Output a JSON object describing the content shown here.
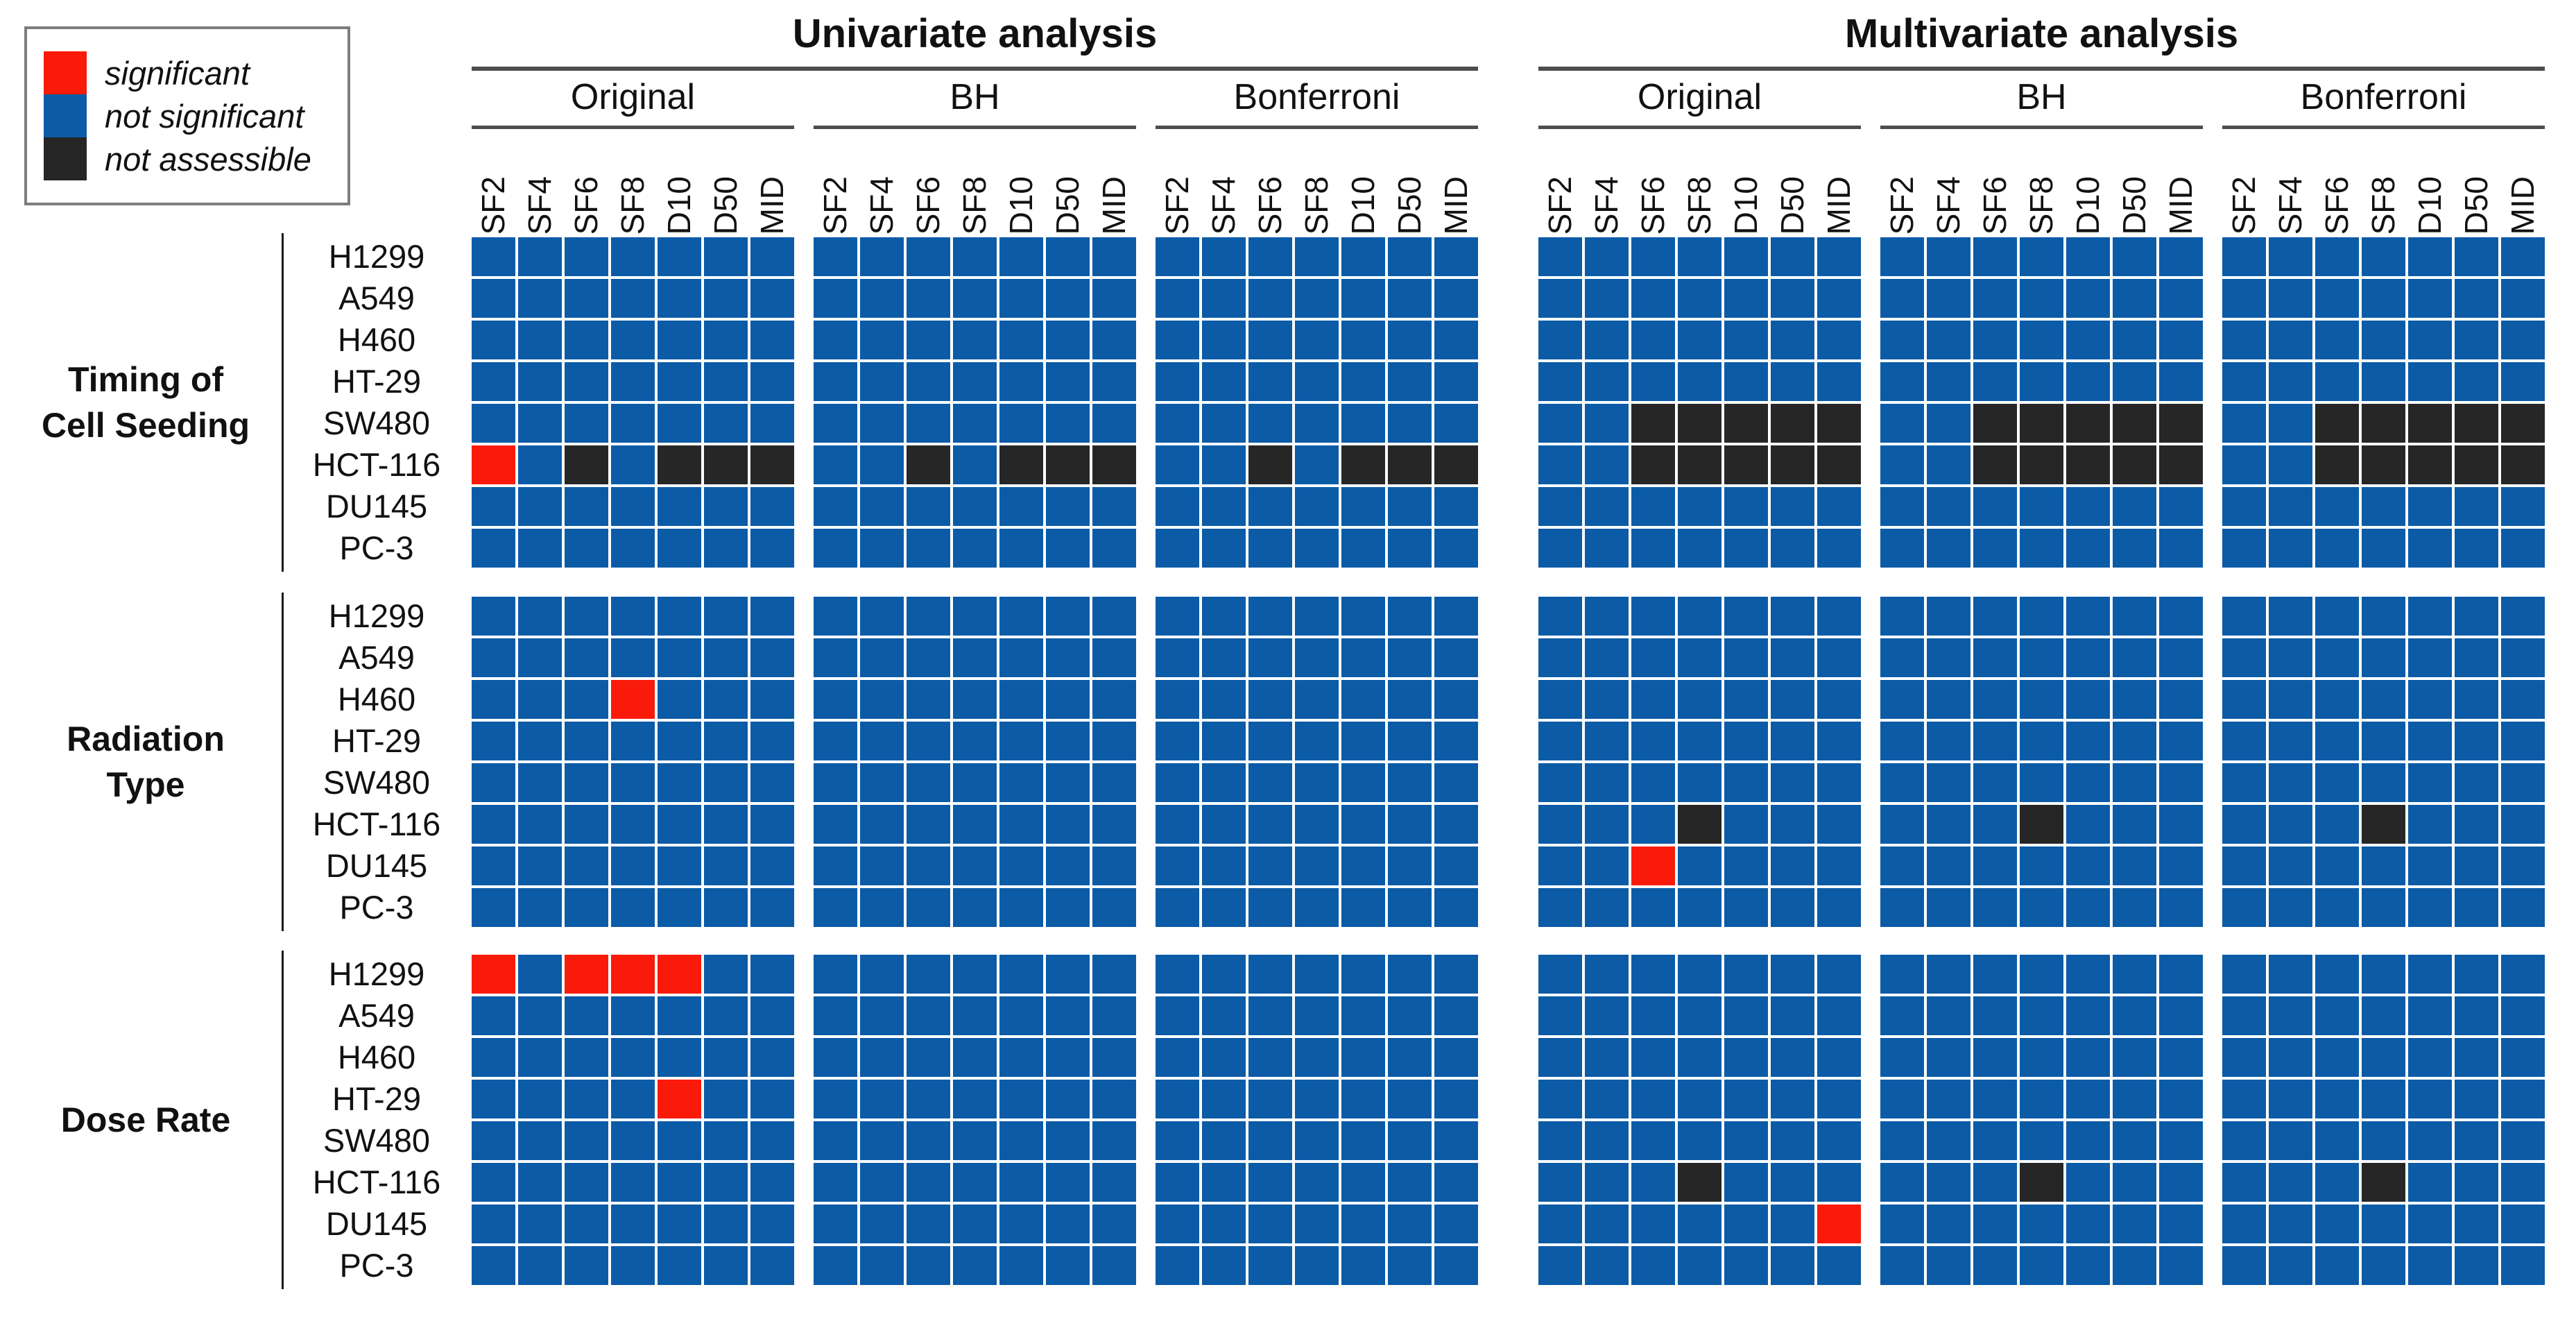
{
  "legend": {
    "items": [
      {
        "code": "R",
        "label": "significant",
        "color": "#fa1a0a"
      },
      {
        "code": "B",
        "label": "not significant",
        "color": "#0b5ba7"
      },
      {
        "code": "K",
        "label": "not assessible",
        "color": "#262626"
      }
    ]
  },
  "chart_data": {
    "type": "heatmap",
    "analyses": [
      {
        "label": "Univariate analysis"
      },
      {
        "label": "Multivariate analysis"
      }
    ],
    "methods": [
      "Original",
      "BH",
      "Bonferroni"
    ],
    "columns": [
      "SF2",
      "SF4",
      "SF6",
      "SF8",
      "D10",
      "D50",
      "MID"
    ],
    "rows": [
      "H1299",
      "A549",
      "H460",
      "HT-29",
      "SW480",
      "HCT-116",
      "DU145",
      "PC-3"
    ],
    "row_groups": [
      {
        "label": "Timing of Cell Seeding",
        "label_lines": [
          "Timing of",
          "Cell Seeding"
        ]
      },
      {
        "label": "Radiation Type",
        "label_lines": [
          "Radiation",
          "Type"
        ]
      },
      {
        "label": "Dose Rate",
        "label_lines": [
          "Dose Rate"
        ]
      }
    ],
    "block_order": [
      "Univariate Original",
      "Univariate BH",
      "Univariate Bonferroni",
      "Multivariate Original",
      "Multivariate BH",
      "Multivariate Bonferroni"
    ],
    "value_codes": {
      "R": "significant",
      "B": "not significant",
      "K": "not assessible"
    },
    "matrix": [
      [
        [
          "BBBBBBB",
          "BBBBBBB",
          "BBBBBBB",
          "BBBBBBB",
          "BBBBBBB",
          "RBKBKKK",
          "BBBBBBB",
          "BBBBBBB"
        ],
        [
          "BBBBBBB",
          "BBBBBBB",
          "BBBBBBB",
          "BBBBBBB",
          "BBBBBBB",
          "BBKBKKK",
          "BBBBBBB",
          "BBBBBBB"
        ],
        [
          "BBBBBBB",
          "BBBBBBB",
          "BBBBBBB",
          "BBBBBBB",
          "BBBBBBB",
          "BBKBKKK",
          "BBBBBBB",
          "BBBBBBB"
        ],
        [
          "BBBBBBB",
          "BBBBBBB",
          "BBBBBBB",
          "BBBBBBB",
          "BBKKKKK",
          "BBKKKKK",
          "BBBBBBB",
          "BBBBBBB"
        ],
        [
          "BBBBBBB",
          "BBBBBBB",
          "BBBBBBB",
          "BBBBBBB",
          "BBKKKKK",
          "BBKKKKK",
          "BBBBBBB",
          "BBBBBBB"
        ],
        [
          "BBBBBBB",
          "BBBBBBB",
          "BBBBBBB",
          "BBBBBBB",
          "BBKKKKK",
          "BBKKKKK",
          "BBBBBBB",
          "BBBBBBB"
        ]
      ],
      [
        [
          "BBBBBBB",
          "BBBBBBB",
          "BBBRBBB",
          "BBBBBBB",
          "BBBBBBB",
          "BBBBBBB",
          "BBBBBBB",
          "BBBBBBB"
        ],
        [
          "BBBBBBB",
          "BBBBBBB",
          "BBBBBBB",
          "BBBBBBB",
          "BBBBBBB",
          "BBBBBBB",
          "BBBBBBB",
          "BBBBBBB"
        ],
        [
          "BBBBBBB",
          "BBBBBBB",
          "BBBBBBB",
          "BBBBBBB",
          "BBBBBBB",
          "BBBBBBB",
          "BBBBBBB",
          "BBBBBBB"
        ],
        [
          "BBBBBBB",
          "BBBBBBB",
          "BBBBBBB",
          "BBBBBBB",
          "BBBBBBB",
          "BBBKBBB",
          "BBRBBBB",
          "BBBBBBB"
        ],
        [
          "BBBBBBB",
          "BBBBBBB",
          "BBBBBBB",
          "BBBBBBB",
          "BBBBBBB",
          "BBBKBBB",
          "BBBBBBB",
          "BBBBBBB"
        ],
        [
          "BBBBBBB",
          "BBBBBBB",
          "BBBBBBB",
          "BBBBBBB",
          "BBBBBBB",
          "BBBKBBB",
          "BBBBBBB",
          "BBBBBBB"
        ]
      ],
      [
        [
          "RBRRRBB",
          "BBBBBBB",
          "BBBBBBB",
          "BBBBRBB",
          "BBBBBBB",
          "BBBBBBB",
          "BBBBBBB",
          "BBBBBBB"
        ],
        [
          "BBBBBBB",
          "BBBBBBB",
          "BBBBBBB",
          "BBBBBBB",
          "BBBBBBB",
          "BBBBBBB",
          "BBBBBBB",
          "BBBBBBB"
        ],
        [
          "BBBBBBB",
          "BBBBBBB",
          "BBBBBBB",
          "BBBBBBB",
          "BBBBBBB",
          "BBBBBBB",
          "BBBBBBB",
          "BBBBBBB"
        ],
        [
          "BBBBBBB",
          "BBBBBBB",
          "BBBBBBB",
          "BBBBBBB",
          "BBBBBBB",
          "BBBKBBB",
          "BBBBBBR",
          "BBBBBBB"
        ],
        [
          "BBBBBBB",
          "BBBBBBB",
          "BBBBBBB",
          "BBBBBBB",
          "BBBBBBB",
          "BBBKBBB",
          "BBBBBBB",
          "BBBBBBB"
        ],
        [
          "BBBBBBB",
          "BBBBBBB",
          "BBBBBBB",
          "BBBBBBB",
          "BBBBBBB",
          "BBBKBBB",
          "BBBBBBB",
          "BBBBBBB"
        ]
      ]
    ]
  }
}
